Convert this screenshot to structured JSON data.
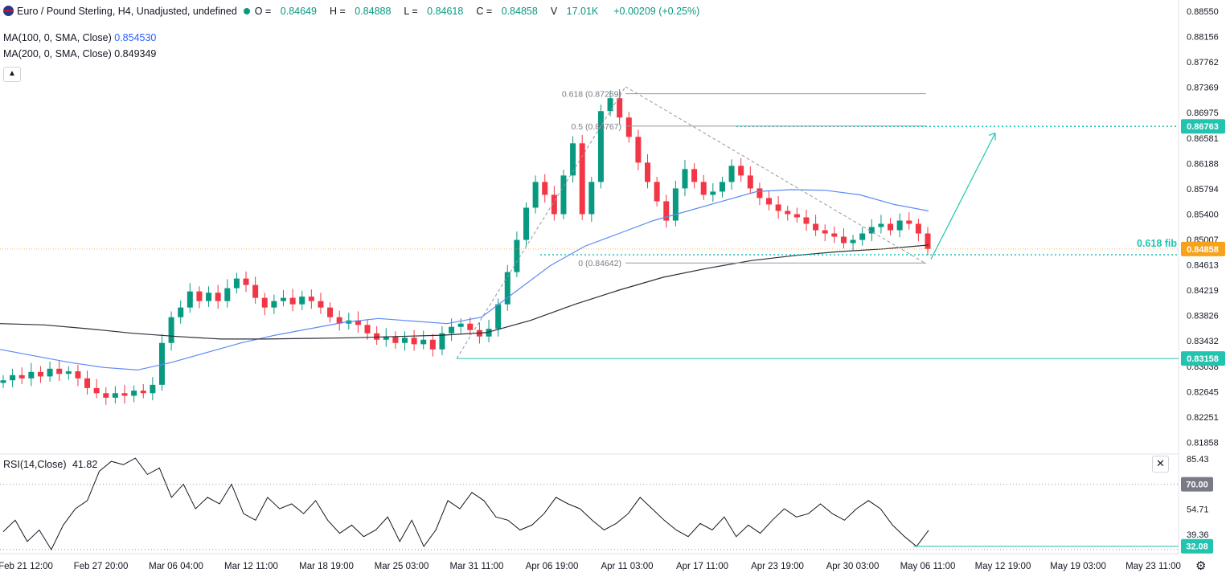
{
  "header": {
    "symbol_title": "Euro / Pound Sterling, H4, Unadjusted, undefined",
    "flag_icon": "uk-flag-icon",
    "ohlc": [
      {
        "k": "O",
        "v": "0.84649"
      },
      {
        "k": "H",
        "v": "0.84888"
      },
      {
        "k": "L",
        "v": "0.84618"
      },
      {
        "k": "C",
        "v": "0.84858"
      },
      {
        "k": "V",
        "v": "17.01K"
      }
    ],
    "change": "+0.00209 (+0.25%)"
  },
  "indicators": {
    "ma100_label": "MA(100, 0, SMA, Close)",
    "ma100_value": "0.854530",
    "ma200_label": "MA(200, 0, SMA, Close)",
    "ma200_value": "0.849349",
    "collapse_icon": "chevron-up-icon"
  },
  "rsi": {
    "label": "RSI(14,Close)",
    "value": "41.82",
    "close_icon": "close-icon"
  },
  "annotations": {
    "fib_0618_text": "0.618 (0.87269)",
    "fib_05_text": "0.5 (0.86767)",
    "fib_0_text": "0 (0.84642)",
    "fib_note": "0.618 fib"
  },
  "chart_data": {
    "type": "candlestick",
    "price_axis": {
      "ticks": [
        "0.88550",
        "0.88156",
        "0.87762",
        "0.87369",
        "0.86975",
        "0.86581",
        "0.86188",
        "0.85794",
        "0.85400",
        "0.85007",
        "0.84613",
        "0.84219",
        "0.83826",
        "0.83432",
        "0.83038",
        "0.82645",
        "0.82251",
        "0.81858"
      ],
      "range": [
        0.817,
        0.887
      ]
    },
    "price_badges": [
      {
        "value": "0.86763",
        "color": "#22c4b0"
      },
      {
        "value": "0.84858",
        "color": "#f7a21b"
      },
      {
        "value": "0.83158",
        "color": "#22c4b0"
      }
    ],
    "rsi_axis": {
      "ticks": [
        "85.43",
        "70.00",
        "54.71",
        "39.36"
      ],
      "range": [
        28,
        88
      ],
      "badges": [
        {
          "value": "70.00",
          "color": "#787b86"
        },
        {
          "value": "32.08",
          "color": "#22c4b0"
        }
      ]
    },
    "time_axis": [
      "Feb 21 12:00",
      "Feb 27 20:00",
      "Mar 06 04:00",
      "Mar 12 11:00",
      "Mar 18 19:00",
      "Mar 25 03:00",
      "Mar 31 11:00",
      "Apr 06 19:00",
      "Apr 11 03:00",
      "Apr 17 11:00",
      "Apr 23 19:00",
      "Apr 30 03:00",
      "May 06 11:00",
      "May 12 19:00",
      "May 19 03:00",
      "May 23 11:00"
    ],
    "close_path": [
      [
        0.8282
      ],
      [
        0.829
      ],
      [
        0.8285
      ],
      [
        0.8295
      ],
      [
        0.8288
      ],
      [
        0.83
      ],
      [
        0.8292
      ],
      [
        0.8296
      ],
      [
        0.8285
      ],
      [
        0.827
      ],
      [
        0.8262
      ],
      [
        0.8255
      ],
      [
        0.8262
      ],
      [
        0.8258
      ],
      [
        0.8266
      ],
      [
        0.8262
      ],
      [
        0.8275
      ],
      [
        0.834
      ],
      [
        0.838
      ],
      [
        0.8395
      ],
      [
        0.842
      ],
      [
        0.8405
      ],
      [
        0.8418
      ],
      [
        0.8405
      ],
      [
        0.8425
      ],
      [
        0.844
      ],
      [
        0.843
      ],
      [
        0.841
      ],
      [
        0.8395
      ],
      [
        0.8405
      ],
      [
        0.841
      ],
      [
        0.84
      ],
      [
        0.8412
      ],
      [
        0.8405
      ],
      [
        0.8395
      ],
      [
        0.838
      ],
      [
        0.837
      ],
      [
        0.8375
      ],
      [
        0.8368
      ],
      [
        0.8355
      ],
      [
        0.8345
      ],
      [
        0.835
      ],
      [
        0.834
      ],
      [
        0.8348
      ],
      [
        0.8338
      ],
      [
        0.8345
      ],
      [
        0.833
      ],
      [
        0.8355
      ],
      [
        0.8365
      ],
      [
        0.837
      ],
      [
        0.836
      ],
      [
        0.835
      ],
      [
        0.8362
      ],
      [
        0.84
      ],
      [
        0.845
      ],
      [
        0.85
      ],
      [
        0.855
      ],
      [
        0.859
      ],
      [
        0.857
      ],
      [
        0.854
      ],
      [
        0.86
      ],
      [
        0.865
      ],
      [
        0.854
      ],
      [
        0.859
      ],
      [
        0.87
      ],
      [
        0.872
      ],
      [
        0.869
      ],
      [
        0.866
      ],
      [
        0.862
      ],
      [
        0.859
      ],
      [
        0.856
      ],
      [
        0.853
      ],
      [
        0.858
      ],
      [
        0.861
      ],
      [
        0.859
      ],
      [
        0.857
      ],
      [
        0.8575
      ],
      [
        0.859
      ],
      [
        0.8615
      ],
      [
        0.86
      ],
      [
        0.858
      ],
      [
        0.8565
      ],
      [
        0.8555
      ],
      [
        0.8545
      ],
      [
        0.854
      ],
      [
        0.8535
      ],
      [
        0.8525
      ],
      [
        0.8515
      ],
      [
        0.851
      ],
      [
        0.8505
      ],
      [
        0.8495
      ],
      [
        0.85
      ],
      [
        0.851
      ],
      [
        0.852
      ],
      [
        0.8525
      ],
      [
        0.8515
      ],
      [
        0.853
      ],
      [
        0.8525
      ],
      [
        0.851
      ],
      [
        0.8486
      ]
    ],
    "ma100_path": [
      0.833,
      0.832,
      0.831,
      0.8302,
      0.8298,
      0.831,
      0.8325,
      0.834,
      0.8352,
      0.8362,
      0.8372,
      0.8378,
      0.8374,
      0.837,
      0.838,
      0.842,
      0.846,
      0.849,
      0.851,
      0.853,
      0.8545,
      0.856,
      0.8575,
      0.8578,
      0.8577,
      0.857,
      0.8555,
      0.8545
    ],
    "ma200_path": [
      0.837,
      0.8368,
      0.8362,
      0.8355,
      0.835,
      0.8346,
      0.8346,
      0.8347,
      0.8348,
      0.835,
      0.8352,
      0.8356,
      0.8375,
      0.84,
      0.8422,
      0.8442,
      0.8456,
      0.8468,
      0.8476,
      0.8482,
      0.8486,
      0.8492
    ],
    "rsi_path": [
      41,
      48,
      35,
      42,
      30,
      45,
      55,
      60,
      78,
      84,
      82,
      86,
      76,
      80,
      62,
      70,
      55,
      62,
      58,
      70,
      52,
      48,
      62,
      55,
      58,
      52,
      60,
      48,
      40,
      45,
      38,
      42,
      50,
      35,
      48,
      32,
      42,
      60,
      55,
      65,
      60,
      50,
      48,
      42,
      45,
      52,
      62,
      58,
      55,
      48,
      42,
      46,
      52,
      62,
      55,
      48,
      42,
      38,
      46,
      42,
      50,
      38,
      45,
      40,
      48,
      55,
      50,
      52,
      58,
      52,
      48,
      55,
      60,
      55,
      45,
      38,
      32,
      41.82
    ],
    "fibonacci": {
      "levels": [
        {
          "ratio": "0.618",
          "price": 0.87269
        },
        {
          "ratio": "0.5",
          "price": 0.86767
        },
        {
          "ratio": "0",
          "price": 0.84642
        }
      ]
    },
    "target_line": 0.86763,
    "support_line": 0.83158,
    "current_price": 0.84858
  }
}
